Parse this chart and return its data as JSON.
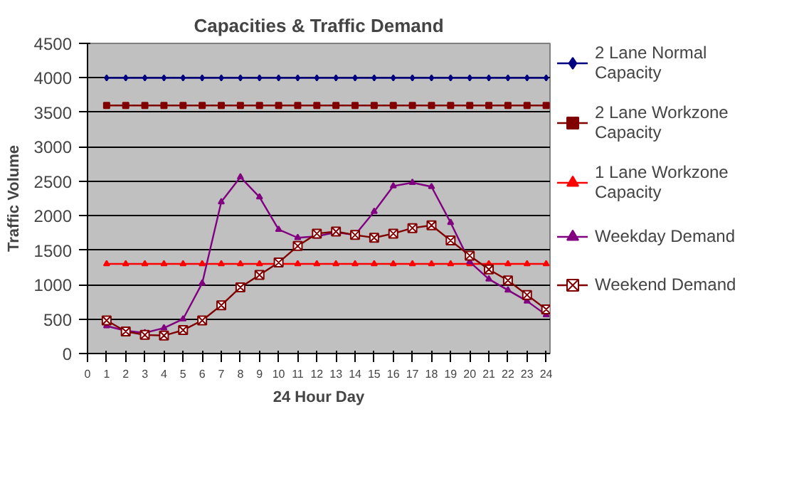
{
  "chart_data": {
    "type": "line",
    "title": "Capacities & Traffic Demand",
    "xlabel": "24 Hour Day",
    "ylabel": "Traffic Volume",
    "x": [
      1,
      2,
      3,
      4,
      5,
      6,
      7,
      8,
      9,
      10,
      11,
      12,
      13,
      14,
      15,
      16,
      17,
      18,
      19,
      20,
      21,
      22,
      23,
      24
    ],
    "series": [
      {
        "name": "2 Lane Normal Capacity",
        "color": "#000080",
        "marker": "diamond",
        "values": [
          4000,
          4000,
          4000,
          4000,
          4000,
          4000,
          4000,
          4000,
          4000,
          4000,
          4000,
          4000,
          4000,
          4000,
          4000,
          4000,
          4000,
          4000,
          4000,
          4000,
          4000,
          4000,
          4000,
          4000
        ]
      },
      {
        "name": "2 Lane Workzone Capacity",
        "color": "#800000",
        "marker": "square",
        "values": [
          3600,
          3600,
          3600,
          3600,
          3600,
          3600,
          3600,
          3600,
          3600,
          3600,
          3600,
          3600,
          3600,
          3600,
          3600,
          3600,
          3600,
          3600,
          3600,
          3600,
          3600,
          3600,
          3600,
          3600
        ]
      },
      {
        "name": "1 Lane Workzone Capacity",
        "color": "#ff0000",
        "marker": "triangle",
        "values": [
          1300,
          1300,
          1300,
          1300,
          1300,
          1300,
          1300,
          1300,
          1300,
          1300,
          1300,
          1300,
          1300,
          1300,
          1300,
          1300,
          1300,
          1300,
          1300,
          1300,
          1300,
          1300,
          1300,
          1300
        ]
      },
      {
        "name": "Weekday Demand",
        "color": "#800080",
        "marker": "triangle",
        "values": [
          400,
          330,
          300,
          370,
          500,
          1020,
          2200,
          2560,
          2270,
          1800,
          1680,
          1700,
          1760,
          1720,
          2060,
          2430,
          2480,
          2420,
          1900,
          1330,
          1080,
          920,
          760,
          560
        ]
      },
      {
        "name": "Weekend Demand",
        "color": "#800000",
        "marker": "cross",
        "values": [
          480,
          320,
          270,
          260,
          340,
          480,
          700,
          960,
          1140,
          1320,
          1560,
          1740,
          1770,
          1720,
          1680,
          1740,
          1820,
          1860,
          1640,
          1420,
          1220,
          1060,
          850,
          640
        ]
      }
    ],
    "xlim": [
      0,
      24.2
    ],
    "xticks": [
      0,
      1,
      2,
      3,
      4,
      5,
      6,
      7,
      8,
      9,
      10,
      11,
      12,
      13,
      14,
      15,
      16,
      17,
      18,
      19,
      20,
      21,
      22,
      23,
      24
    ],
    "ylim": [
      0,
      4500
    ],
    "yticks": [
      0,
      500,
      1000,
      1500,
      2000,
      2500,
      3000,
      3500,
      4000,
      4500
    ],
    "grid": "y",
    "legend": "right"
  }
}
